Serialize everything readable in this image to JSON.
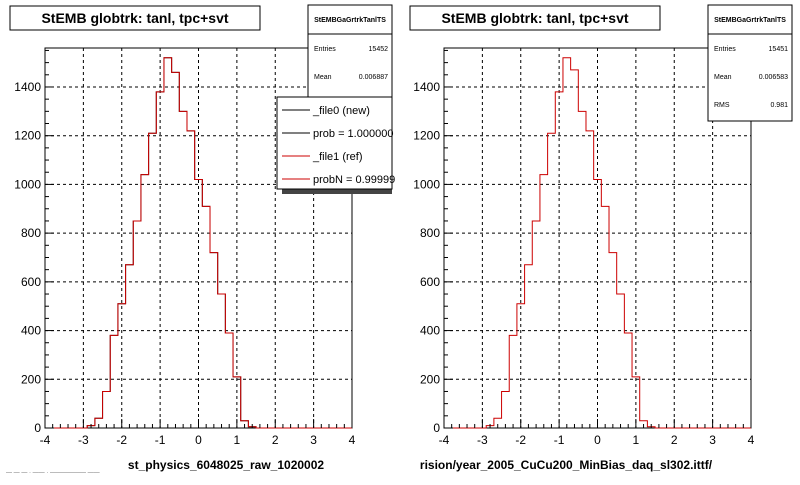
{
  "colors": {
    "new": "#000000",
    "ref": "#cc0000",
    "grid": "#000000",
    "background": "#ffffff"
  },
  "x_ticks": [
    "-4",
    "-3",
    "-2",
    "-1",
    "0",
    "1",
    "2",
    "3",
    "4"
  ],
  "y_ticks": [
    "0",
    "200",
    "400",
    "600",
    "800",
    "1000",
    "1200",
    "1400"
  ],
  "left": {
    "title": "StEMB globtrk: tanl, tpc+svt",
    "xlabel": "st_physics_6048025_raw_1020002",
    "stats": {
      "name": "StEMBGaGrtrkTanlTS",
      "rows": [
        {
          "label": "Entries",
          "value": "15452"
        },
        {
          "label": "Mean",
          "value": "0.006887"
        }
      ]
    },
    "legend": [
      {
        "label": "_file0 (new)",
        "color": "#000000"
      },
      {
        "label": "prob = 1.000000",
        "color": "#000000"
      },
      {
        "label": "_file1 (ref)",
        "color": "#cc0000"
      },
      {
        "label": "probN = 0.99999",
        "color": "#cc0000"
      }
    ]
  },
  "right": {
    "title": "StEMB globtrk: tanl, tpc+svt",
    "xlabel": "rision/year_2005_CuCu200_MinBias_daq_sl302.ittf/",
    "stats": {
      "name": "StEMBGaGrtrkTanlTS",
      "rows": [
        {
          "label": "Entries",
          "value": "15451"
        },
        {
          "label": "Mean",
          "value": "0.006583"
        },
        {
          "label": "RMS",
          "value": "0.981"
        }
      ]
    }
  },
  "footer_text": "— — — · —— · —————— ——",
  "chart_data": [
    {
      "type": "histogram",
      "title": "StEMB globtrk: tanl, tpc+svt",
      "xlabel": "st_physics_6048025_raw_1020002",
      "xlim": [
        -4,
        4
      ],
      "ylim": [
        0,
        1560
      ],
      "grid": true,
      "legend_position": "top-right",
      "bin_edges_start": -2.9,
      "bin_width": 0.2,
      "series": [
        {
          "name": "_file0 (new)",
          "color": "#000000",
          "values": [
            10,
            40,
            150,
            380,
            510,
            670,
            850,
            1040,
            1210,
            1380,
            1520,
            1460,
            1300,
            1220,
            1020,
            910,
            720,
            550,
            390,
            210,
            30,
            5
          ]
        },
        {
          "name": "_file1 (ref)",
          "color": "#cc0000",
          "values": [
            10,
            40,
            150,
            380,
            510,
            670,
            850,
            1040,
            1210,
            1380,
            1520,
            1460,
            1300,
            1220,
            1020,
            910,
            720,
            550,
            390,
            210,
            30,
            5
          ]
        }
      ]
    },
    {
      "type": "histogram",
      "title": "StEMB globtrk: tanl, tpc+svt",
      "xlabel": "rision/year_2005_CuCu200_MinBias_daq_sl302.ittf/",
      "xlim": [
        -4,
        4
      ],
      "ylim": [
        0,
        1560
      ],
      "grid": true,
      "bin_edges_start": -2.9,
      "bin_width": 0.2,
      "series": [
        {
          "color": "#cc0000",
          "values": [
            10,
            40,
            150,
            380,
            510,
            670,
            850,
            1040,
            1210,
            1380,
            1520,
            1470,
            1300,
            1220,
            1020,
            910,
            720,
            550,
            390,
            210,
            30,
            5
          ]
        }
      ]
    }
  ]
}
